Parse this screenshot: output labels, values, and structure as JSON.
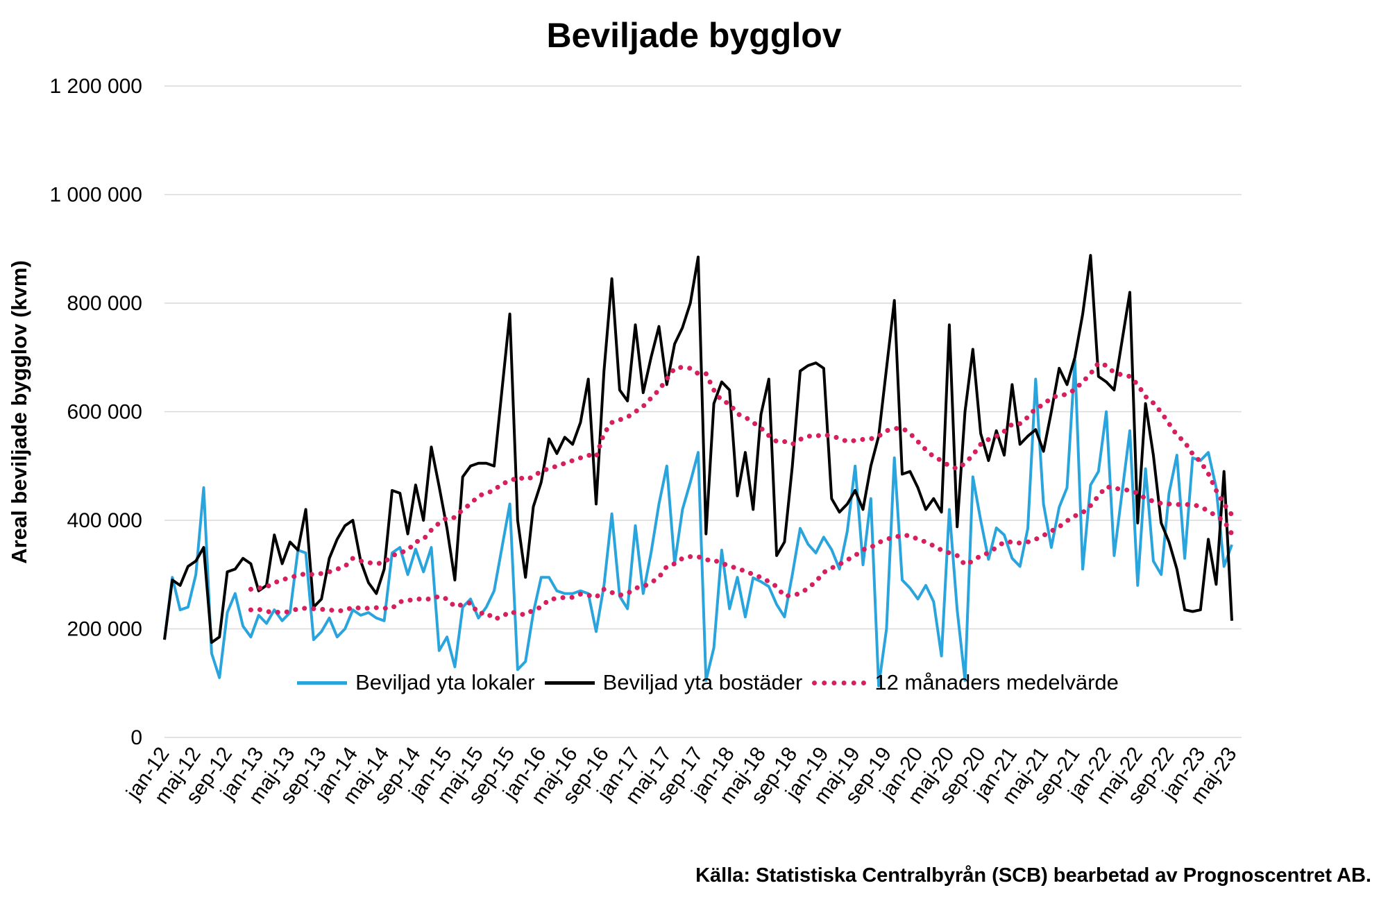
{
  "title": "Beviljade bygglov",
  "y_axis": {
    "label": "Areal beviljade bygglov (kvm)",
    "tick_values": [
      0,
      200000,
      400000,
      600000,
      800000,
      1000000,
      1200000
    ],
    "tick_labels": [
      "0",
      "200 000",
      "400 000",
      "600 000",
      "800 000",
      "1 000 000",
      "1 200 000"
    ]
  },
  "x_axis": {
    "tick_every": 4
  },
  "legend": {
    "items": [
      {
        "label": "Beviljad yta lokaler",
        "color": "#29a4dc",
        "style": "solid"
      },
      {
        "label": "Beviljad yta bostäder",
        "color": "#000000",
        "style": "solid"
      },
      {
        "label": "12 månaders medelvärde",
        "color": "#d61f5f",
        "style": "dotted"
      }
    ]
  },
  "source": "Källa: Statistiska Centralbyrån (SCB) bearbetad av Prognoscentret AB.",
  "chart_data": {
    "type": "line",
    "title": "Beviljade bygglov",
    "ylabel": "Areal beviljade bygglov (kvm)",
    "ylim": [
      0,
      1200000
    ],
    "grid": true,
    "legend_position": "bottom",
    "x": [
      "jan-12",
      "feb-12",
      "mar-12",
      "apr-12",
      "maj-12",
      "jun-12",
      "jul-12",
      "aug-12",
      "sep-12",
      "okt-12",
      "nov-12",
      "dec-12",
      "jan-13",
      "feb-13",
      "mar-13",
      "apr-13",
      "maj-13",
      "jun-13",
      "jul-13",
      "aug-13",
      "sep-13",
      "okt-13",
      "nov-13",
      "dec-13",
      "jan-14",
      "feb-14",
      "mar-14",
      "apr-14",
      "maj-14",
      "jun-14",
      "jul-14",
      "aug-14",
      "sep-14",
      "okt-14",
      "nov-14",
      "dec-14",
      "jan-15",
      "feb-15",
      "mar-15",
      "apr-15",
      "maj-15",
      "jun-15",
      "jul-15",
      "aug-15",
      "sep-15",
      "okt-15",
      "nov-15",
      "dec-15",
      "jan-16",
      "feb-16",
      "mar-16",
      "apr-16",
      "maj-16",
      "jun-16",
      "jul-16",
      "aug-16",
      "sep-16",
      "okt-16",
      "nov-16",
      "dec-16",
      "jan-17",
      "feb-17",
      "mar-17",
      "apr-17",
      "maj-17",
      "jun-17",
      "jul-17",
      "aug-17",
      "sep-17",
      "okt-17",
      "nov-17",
      "dec-17",
      "jan-18",
      "feb-18",
      "mar-18",
      "apr-18",
      "maj-18",
      "jun-18",
      "jul-18",
      "aug-18",
      "sep-18",
      "okt-18",
      "nov-18",
      "dec-18",
      "jan-19",
      "feb-19",
      "mar-19",
      "apr-19",
      "maj-19",
      "jun-19",
      "jul-19",
      "aug-19",
      "sep-19",
      "okt-19",
      "nov-19",
      "dec-19",
      "jan-20",
      "feb-20",
      "mar-20",
      "apr-20",
      "maj-20",
      "jun-20",
      "jul-20",
      "aug-20",
      "sep-20",
      "okt-20",
      "nov-20",
      "dec-20",
      "jan-21",
      "feb-21",
      "mar-21",
      "apr-21",
      "maj-21",
      "jun-21",
      "jul-21",
      "aug-21",
      "sep-21",
      "okt-21",
      "nov-21",
      "dec-21",
      "jan-22",
      "feb-22",
      "mar-22",
      "apr-22",
      "maj-22",
      "jun-22",
      "jul-22",
      "aug-22",
      "sep-22",
      "okt-22",
      "nov-22",
      "dec-22",
      "jan-23",
      "feb-23",
      "mar-23",
      "apr-23",
      "maj-23"
    ],
    "series": [
      {
        "name": "Beviljad yta lokaler",
        "color": "#29a4dc",
        "style": "solid",
        "width": 4,
        "values": [
          180000,
          295000,
          235000,
          240000,
          300000,
          460000,
          155000,
          110000,
          230000,
          265000,
          205000,
          185000,
          225000,
          210000,
          235000,
          215000,
          230000,
          345000,
          340000,
          180000,
          195000,
          220000,
          185000,
          200000,
          235000,
          225000,
          230000,
          220000,
          215000,
          340000,
          350000,
          300000,
          347000,
          305000,
          350000,
          160000,
          185000,
          130000,
          240000,
          255000,
          220000,
          240000,
          270000,
          350000,
          430000,
          125000,
          140000,
          230000,
          295000,
          295000,
          270000,
          265000,
          265000,
          270000,
          265000,
          195000,
          280000,
          412000,
          260000,
          237000,
          390000,
          265000,
          340000,
          430000,
          500000,
          320000,
          420000,
          470000,
          525000,
          105000,
          165000,
          345000,
          237000,
          295000,
          222000,
          294000,
          287000,
          278000,
          245000,
          222000,
          300000,
          385000,
          356000,
          340000,
          369000,
          346000,
          310000,
          380000,
          500000,
          318000,
          440000,
          95000,
          200000,
          515000,
          290000,
          275000,
          255000,
          280000,
          250000,
          150000,
          420000,
          235000,
          105000,
          480000,
          400000,
          328000,
          386000,
          373000,
          330000,
          315000,
          385000,
          660000,
          430000,
          350000,
          424000,
          460000,
          695000,
          310000,
          465000,
          490000,
          600000,
          335000,
          450000,
          565000,
          280000,
          495000,
          325000,
          300000,
          450000,
          520000,
          330000,
          515000,
          510000,
          525000,
          460000,
          315000,
          355000
        ]
      },
      {
        "name": "Beviljad yta bostäder",
        "color": "#000000",
        "style": "solid",
        "width": 4,
        "values": [
          180000,
          290000,
          280000,
          315000,
          325000,
          350000,
          175000,
          185000,
          305000,
          310000,
          330000,
          320000,
          270000,
          280000,
          373000,
          320000,
          360000,
          345000,
          420000,
          240000,
          255000,
          330000,
          365000,
          390000,
          400000,
          325000,
          285000,
          265000,
          310000,
          455000,
          450000,
          375000,
          465000,
          400000,
          535000,
          462000,
          385000,
          290000,
          480000,
          500000,
          505000,
          505000,
          500000,
          640000,
          780000,
          400000,
          295000,
          425000,
          470000,
          550000,
          523000,
          553000,
          540000,
          580000,
          660000,
          430000,
          675000,
          845000,
          640000,
          620000,
          760000,
          635000,
          700000,
          757000,
          650000,
          725000,
          755000,
          800000,
          885000,
          375000,
          615000,
          655000,
          640000,
          445000,
          525000,
          420000,
          595000,
          660000,
          335000,
          360000,
          500000,
          675000,
          685000,
          690000,
          680000,
          440000,
          415000,
          430000,
          455000,
          420000,
          500000,
          555000,
          680000,
          805000,
          485000,
          490000,
          460000,
          420000,
          440000,
          415000,
          760000,
          388000,
          600000,
          715000,
          560000,
          510000,
          565000,
          520000,
          650000,
          540000,
          555000,
          567000,
          527000,
          600000,
          680000,
          650000,
          700000,
          780000,
          888000,
          665000,
          655000,
          640000,
          730000,
          820000,
          395000,
          615000,
          520000,
          395000,
          360000,
          310000,
          235000,
          232000,
          235000,
          365000,
          282000,
          490000,
          215000
        ]
      },
      {
        "name": "12 månaders medelvärde (bostäder)",
        "color": "#d61f5f",
        "style": "dotted",
        "width": 7,
        "values": [
          null,
          null,
          null,
          null,
          null,
          null,
          null,
          null,
          null,
          null,
          null,
          273000,
          275000,
          277000,
          285000,
          290000,
          295000,
          298000,
          302000,
          300000,
          302000,
          305000,
          310000,
          315000,
          330000,
          325000,
          322000,
          320000,
          322000,
          335000,
          340000,
          345000,
          360000,
          365000,
          382000,
          395000,
          405000,
          405000,
          420000,
          430000,
          445000,
          450000,
          455000,
          468000,
          471000,
          480000,
          475000,
          480000,
          491000,
          495000,
          500000,
          505000,
          510000,
          515000,
          520000,
          517000,
          560000,
          580000,
          585000,
          590000,
          600000,
          610000,
          625000,
          640000,
          660000,
          680000,
          682000,
          680000,
          670000,
          670000,
          640000,
          620000,
          615000,
          596000,
          590000,
          580000,
          570000,
          556000,
          545000,
          545000,
          540000,
          549000,
          555000,
          555000,
          558000,
          555000,
          551000,
          545000,
          547000,
          549000,
          550000,
          555000,
          565000,
          569000,
          570000,
          560000,
          545000,
          530000,
          517000,
          510000,
          500000,
          495000,
          505000,
          520000,
          540000,
          549000,
          555000,
          564000,
          577000,
          578000,
          590000,
          606000,
          613000,
          626000,
          630000,
          632000,
          641000,
          655000,
          670000,
          690000,
          685000,
          672000,
          668000,
          665000,
          650000,
          628000,
          616000,
          599000,
          578000,
          557000,
          544000,
          522000,
          508000,
          486000,
          455000,
          430000,
          410000
        ]
      },
      {
        "name": "12 månaders medelvärde (lokaler)",
        "color": "#d61f5f",
        "style": "dotted",
        "width": 7,
        "values": [
          null,
          null,
          null,
          null,
          null,
          null,
          null,
          null,
          null,
          null,
          null,
          235000,
          236000,
          232000,
          231000,
          230000,
          232000,
          237000,
          238000,
          237000,
          236000,
          235000,
          233000,
          234000,
          240000,
          238000,
          238000,
          239000,
          238000,
          238000,
          250000,
          252000,
          255000,
          255000,
          255000,
          260000,
          255000,
          241000,
          245000,
          248000,
          228000,
          230000,
          218000,
          222000,
          232000,
          228000,
          226000,
          235000,
          240000,
          254000,
          256000,
          258000,
          258000,
          264000,
          262000,
          258000,
          273000,
          267000,
          262000,
          265000,
          275000,
          278000,
          285000,
          295000,
          315000,
          320000,
          330000,
          333000,
          333000,
          327000,
          327000,
          320000,
          317000,
          310000,
          307000,
          300000,
          295000,
          287000,
          278000,
          260000,
          262000,
          265000,
          275000,
          287000,
          304000,
          312000,
          319000,
          327000,
          335000,
          346000,
          350000,
          359000,
          365000,
          369000,
          372000,
          372000,
          365000,
          360000,
          353000,
          345000,
          340000,
          335000,
          318000,
          325000,
          335000,
          340000,
          350000,
          360000,
          360000,
          358000,
          360000,
          365000,
          372000,
          380000,
          388000,
          399000,
          408000,
          414000,
          427000,
          445000,
          462000,
          459000,
          457000,
          455000,
          450000,
          440000,
          435000,
          431000,
          430000,
          429000,
          429000,
          429000,
          425000,
          417000,
          408000,
          399000,
          375000
        ]
      }
    ]
  }
}
